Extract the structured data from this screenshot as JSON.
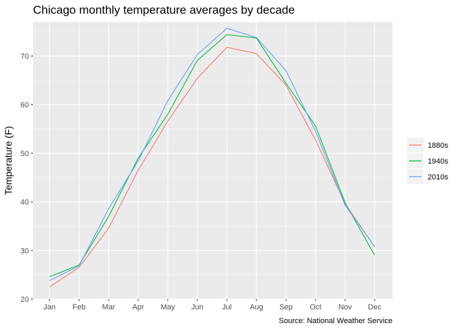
{
  "chart_data": {
    "type": "line",
    "title": "Chicago monthly temperature averages by decade",
    "xlabel": "",
    "ylabel": "Temperature (F)",
    "caption": "Source: National Weather Service",
    "categories": [
      "Jan",
      "Feb",
      "Mar",
      "Apr",
      "May",
      "Jun",
      "Jul",
      "Aug",
      "Sep",
      "Oct",
      "Nov",
      "Dec"
    ],
    "ylim": [
      20,
      77
    ],
    "yticks": [
      20,
      30,
      40,
      50,
      60,
      70
    ],
    "grid": true,
    "legend_position": "right",
    "series": [
      {
        "name": "1880s",
        "color": "#F8766D",
        "values": [
          22.5,
          26.5,
          34.6,
          46.5,
          56.6,
          65.4,
          71.8,
          70.5,
          64.0,
          52.7,
          39.6,
          30.7
        ]
      },
      {
        "name": "1940s",
        "color": "#00BA38",
        "values": [
          24.6,
          27.0,
          37.0,
          49.0,
          58.0,
          69.1,
          74.4,
          73.7,
          64.4,
          55.6,
          39.8,
          29.0
        ]
      },
      {
        "name": "2010s",
        "color": "#619CFF",
        "values": [
          23.8,
          26.8,
          38.6,
          48.4,
          60.8,
          70.3,
          75.7,
          73.8,
          67.0,
          54.5,
          39.3,
          30.8
        ]
      }
    ]
  }
}
